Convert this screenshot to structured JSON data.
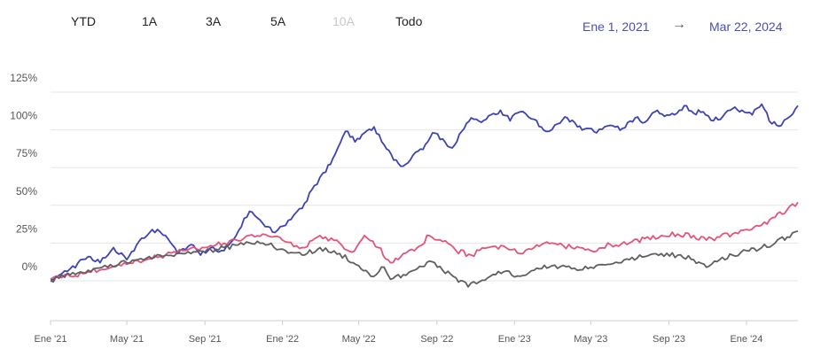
{
  "range_tabs": [
    {
      "label": "YTD",
      "enabled": true
    },
    {
      "label": "1A",
      "enabled": true
    },
    {
      "label": "3A",
      "enabled": true
    },
    {
      "label": "5A",
      "enabled": true
    },
    {
      "label": "10A",
      "enabled": false
    },
    {
      "label": "Todo",
      "enabled": true
    }
  ],
  "date_range": {
    "start": "Ene 1, 2021",
    "arrow": "→",
    "end": "Mar 22, 2024"
  },
  "chart_data": {
    "type": "line",
    "title": "",
    "xlabel": "",
    "ylabel": "",
    "x_range": [
      "2021-01-01",
      "2024-03-22"
    ],
    "ylim": [
      -25,
      137.5
    ],
    "y_ticks": [
      0,
      25,
      50,
      75,
      100,
      125
    ],
    "y_tick_labels": [
      "0%",
      "25%",
      "50%",
      "75%",
      "100%",
      "125%"
    ],
    "x_ticks": [
      "2021-01-01",
      "2021-05-01",
      "2021-09-01",
      "2022-01-01",
      "2022-05-01",
      "2022-09-01",
      "2023-01-01",
      "2023-05-01",
      "2023-09-01",
      "2024-01-01"
    ],
    "x_tick_labels": [
      "Ene '21",
      "May '21",
      "Sep '21",
      "Ene '22",
      "May '22",
      "Sep '22",
      "Ene '23",
      "May '23",
      "Sep '23",
      "Ene '24"
    ],
    "grid": true,
    "series": [
      {
        "color": "#3d43b5",
        "x": [
          "2021-01-01",
          "2021-02-01",
          "2021-03-01",
          "2021-03-20",
          "2021-04-10",
          "2021-05-01",
          "2021-05-20",
          "2021-06-10",
          "2021-07-01",
          "2021-07-20",
          "2021-08-10",
          "2021-08-25",
          "2021-09-10",
          "2021-10-01",
          "2021-10-20",
          "2021-11-10",
          "2021-12-01",
          "2021-12-20",
          "2022-01-10",
          "2022-02-01",
          "2022-02-20",
          "2022-03-10",
          "2022-03-25",
          "2022-04-10",
          "2022-04-25",
          "2022-05-10",
          "2022-05-25",
          "2022-06-10",
          "2022-06-25",
          "2022-07-10",
          "2022-07-25",
          "2022-08-10",
          "2022-08-25",
          "2022-09-10",
          "2022-09-25",
          "2022-10-10",
          "2022-10-25",
          "2022-11-10",
          "2022-11-25",
          "2022-12-10",
          "2022-12-25",
          "2023-01-10",
          "2023-02-01",
          "2023-02-20",
          "2023-03-10",
          "2023-03-25",
          "2023-04-10",
          "2023-04-25",
          "2023-05-10",
          "2023-06-01",
          "2023-06-20",
          "2023-07-10",
          "2023-07-25",
          "2023-08-10",
          "2023-08-25",
          "2023-09-10",
          "2023-09-25",
          "2023-10-10",
          "2023-10-25",
          "2023-11-10",
          "2023-11-25",
          "2023-12-10",
          "2023-12-25",
          "2024-01-10",
          "2024-01-25",
          "2024-02-10",
          "2024-02-25",
          "2024-03-10",
          "2024-03-22"
        ],
        "values": [
          1,
          8,
          16,
          12,
          22,
          14,
          26,
          34,
          30,
          18,
          24,
          17,
          22,
          20,
          30,
          46,
          38,
          32,
          40,
          48,
          63,
          72,
          84,
          99,
          92,
          98,
          102,
          90,
          80,
          76,
          83,
          87,
          98,
          94,
          88,
          99,
          108,
          105,
          110,
          113,
          106,
          112,
          107,
          99,
          104,
          108,
          102,
          101,
          98,
          103,
          101,
          108,
          105,
          112,
          109,
          110,
          116,
          111,
          112,
          106,
          109,
          114,
          113,
          110,
          117,
          104,
          103,
          109,
          116
        ]
      },
      {
        "color": "#e2557a",
        "x": [
          "2021-01-01",
          "2021-02-01",
          "2021-03-01",
          "2021-04-01",
          "2021-05-01",
          "2021-06-01",
          "2021-07-01",
          "2021-08-01",
          "2021-09-01",
          "2021-10-01",
          "2021-11-01",
          "2021-12-01",
          "2022-01-01",
          "2022-02-01",
          "2022-03-01",
          "2022-04-01",
          "2022-04-20",
          "2022-05-10",
          "2022-06-01",
          "2022-06-20",
          "2022-07-10",
          "2022-08-01",
          "2022-08-20",
          "2022-09-10",
          "2022-10-01",
          "2022-10-25",
          "2022-11-20",
          "2022-12-15",
          "2023-01-10",
          "2023-02-01",
          "2023-03-01",
          "2023-04-01",
          "2023-05-01",
          "2023-06-01",
          "2023-07-01",
          "2023-07-25",
          "2023-08-20",
          "2023-09-15",
          "2023-10-10",
          "2023-10-30",
          "2023-11-20",
          "2023-12-10",
          "2024-01-01",
          "2024-01-25",
          "2024-02-15",
          "2024-03-05",
          "2024-03-22"
        ],
        "values": [
          1,
          3,
          6,
          8,
          11,
          14,
          17,
          20,
          22,
          25,
          28,
          31,
          27,
          22,
          30,
          25,
          19,
          30,
          22,
          12,
          18,
          22,
          30,
          26,
          20,
          17,
          22,
          23,
          18,
          22,
          25,
          22,
          20,
          24,
          25,
          28,
          30,
          31,
          30,
          27,
          29,
          31,
          34,
          37,
          42,
          47,
          52
        ]
      },
      {
        "color": "#5f5f5f",
        "x": [
          "2021-01-01",
          "2021-02-01",
          "2021-03-01",
          "2021-04-01",
          "2021-05-01",
          "2021-06-01",
          "2021-07-01",
          "2021-08-01",
          "2021-09-01",
          "2021-10-01",
          "2021-11-01",
          "2021-12-01",
          "2022-01-01",
          "2022-02-01",
          "2022-03-01",
          "2022-04-01",
          "2022-05-01",
          "2022-05-20",
          "2022-06-10",
          "2022-06-20",
          "2022-07-10",
          "2022-08-01",
          "2022-08-20",
          "2022-09-10",
          "2022-10-01",
          "2022-10-20",
          "2022-11-20",
          "2022-12-15",
          "2023-01-10",
          "2023-02-01",
          "2023-03-01",
          "2023-04-01",
          "2023-05-01",
          "2023-06-01",
          "2023-07-01",
          "2023-07-25",
          "2023-08-20",
          "2023-09-15",
          "2023-10-10",
          "2023-10-30",
          "2023-11-20",
          "2023-12-10",
          "2024-01-01",
          "2024-01-25",
          "2024-02-15",
          "2024-03-05",
          "2024-03-22"
        ],
        "values": [
          0,
          4,
          7,
          9,
          12,
          15,
          17,
          18,
          19,
          22,
          24,
          25,
          21,
          17,
          22,
          18,
          10,
          3,
          9,
          1,
          4,
          8,
          13,
          7,
          2,
          -4,
          2,
          6,
          3,
          7,
          10,
          8,
          9,
          11,
          14,
          16,
          18,
          17,
          14,
          9,
          14,
          17,
          20,
          22,
          25,
          29,
          33
        ]
      }
    ]
  }
}
